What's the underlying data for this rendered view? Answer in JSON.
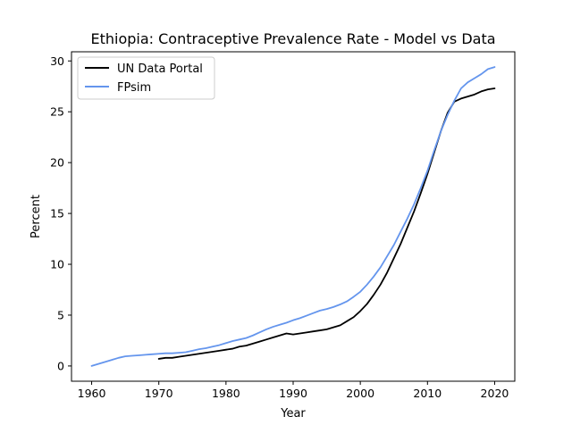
{
  "chart_data": {
    "type": "line",
    "title": "Ethiopia: Contraceptive Prevalence Rate - Model vs Data",
    "xlabel": "Year",
    "ylabel": "Percent",
    "xlim": [
      1957.0,
      2023.0
    ],
    "ylim": [
      -1.5,
      30.9
    ],
    "xticks": [
      1960,
      1970,
      1980,
      1990,
      2000,
      2010,
      2020
    ],
    "yticks": [
      0,
      5,
      10,
      15,
      20,
      25,
      30
    ],
    "grid": false,
    "legend_position": "top-left",
    "series": [
      {
        "name": "UN Data Portal",
        "color": "#000000",
        "x": [
          1970,
          1971,
          1972,
          1973,
          1974,
          1975,
          1976,
          1977,
          1978,
          1979,
          1980,
          1981,
          1982,
          1983,
          1984,
          1985,
          1986,
          1987,
          1988,
          1989,
          1990,
          1991,
          1992,
          1993,
          1994,
          1995,
          1996,
          1997,
          1998,
          1999,
          2000,
          2001,
          2002,
          2003,
          2004,
          2005,
          2006,
          2007,
          2008,
          2009,
          2010,
          2011,
          2012,
          2013,
          2014,
          2015,
          2016,
          2017,
          2018,
          2019,
          2020
        ],
        "y": [
          0.7,
          0.8,
          0.8,
          0.9,
          1.0,
          1.1,
          1.2,
          1.3,
          1.4,
          1.5,
          1.6,
          1.7,
          1.9,
          2.0,
          2.2,
          2.4,
          2.6,
          2.8,
          3.0,
          3.2,
          3.1,
          3.2,
          3.3,
          3.4,
          3.5,
          3.6,
          3.8,
          4.0,
          4.4,
          4.8,
          5.4,
          6.1,
          7.0,
          8.0,
          9.2,
          10.6,
          12.0,
          13.6,
          15.2,
          17.0,
          18.9,
          21.0,
          23.1,
          24.9,
          26.0,
          26.3,
          26.5,
          26.7,
          27.0,
          27.2,
          27.3
        ]
      },
      {
        "name": "FPsim",
        "color": "#6495ed",
        "x": [
          1960,
          1961,
          1962,
          1963,
          1964,
          1965,
          1966,
          1967,
          1968,
          1969,
          1970,
          1971,
          1972,
          1973,
          1974,
          1975,
          1976,
          1977,
          1978,
          1979,
          1980,
          1981,
          1982,
          1983,
          1984,
          1985,
          1986,
          1987,
          1988,
          1989,
          1990,
          1991,
          1992,
          1993,
          1994,
          1995,
          1996,
          1997,
          1998,
          1999,
          2000,
          2001,
          2002,
          2003,
          2004,
          2005,
          2006,
          2007,
          2008,
          2009,
          2010,
          2011,
          2012,
          2013,
          2014,
          2015,
          2016,
          2017,
          2018,
          2019,
          2020
        ],
        "y": [
          0.0,
          0.2,
          0.4,
          0.6,
          0.8,
          0.95,
          1.0,
          1.05,
          1.1,
          1.15,
          1.2,
          1.25,
          1.25,
          1.3,
          1.35,
          1.5,
          1.65,
          1.75,
          1.9,
          2.05,
          2.25,
          2.45,
          2.6,
          2.75,
          3.0,
          3.3,
          3.6,
          3.85,
          4.05,
          4.25,
          4.5,
          4.7,
          4.95,
          5.2,
          5.45,
          5.6,
          5.8,
          6.05,
          6.35,
          6.8,
          7.3,
          8.0,
          8.8,
          9.7,
          10.8,
          11.9,
          13.2,
          14.5,
          15.9,
          17.5,
          19.2,
          21.2,
          23.1,
          24.7,
          26.1,
          27.3,
          27.9,
          28.3,
          28.7,
          29.2,
          29.4
        ]
      }
    ]
  }
}
